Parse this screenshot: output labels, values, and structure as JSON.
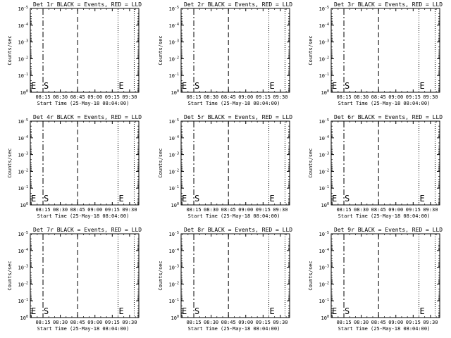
{
  "chart_data": [
    {
      "type": "line",
      "title": "Det 1r BLACK = Events, RED = LLD",
      "xlabel": "Start Time (25-May-18 08:04:00)",
      "ylabel": "Counts/sec",
      "x_ticks": [
        "08:15",
        "08:30",
        "08:45",
        "09:00",
        "09:15",
        "09:30"
      ],
      "y_ticks": [
        "10^0",
        "10^-1",
        "10^-2",
        "10^-3",
        "10^-4",
        "10^-5"
      ],
      "y_scale": "log",
      "series": [],
      "dashdot_lines": [
        "08:04",
        "08:15"
      ],
      "dashed_lines": [
        "08:45"
      ],
      "dotted_lines": [
        "09:20",
        "09:34"
      ],
      "markers": [
        {
          "label": "E",
          "x": "08:04"
        },
        {
          "label": "S",
          "x": "08:15"
        },
        {
          "label": "E",
          "x": "09:20"
        }
      ]
    },
    {
      "type": "line",
      "title": "Det 2r BLACK = Events, RED = LLD",
      "xlabel": "Start Time (25-May-18 08:04:00)",
      "ylabel": "Counts/sec",
      "x_ticks": [
        "08:15",
        "08:30",
        "08:45",
        "09:00",
        "09:15",
        "09:30"
      ],
      "y_ticks": [
        "10^0",
        "10^-1",
        "10^-2",
        "10^-3",
        "10^-4",
        "10^-5"
      ],
      "y_scale": "log",
      "series": [],
      "dashdot_lines": [
        "08:04",
        "08:15"
      ],
      "dashed_lines": [
        "08:45"
      ],
      "dotted_lines": [
        "09:20",
        "09:34"
      ],
      "markers": [
        {
          "label": "E",
          "x": "08:04"
        },
        {
          "label": "S",
          "x": "08:15"
        },
        {
          "label": "E",
          "x": "09:20"
        }
      ]
    },
    {
      "type": "line",
      "title": "Det 3r BLACK = Events, RED = LLD",
      "xlabel": "Start Time (25-May-18 08:04:00)",
      "ylabel": "Counts/sec",
      "x_ticks": [
        "08:15",
        "08:30",
        "08:45",
        "09:00",
        "09:15",
        "09:30"
      ],
      "y_ticks": [
        "10^0",
        "10^-1",
        "10^-2",
        "10^-3",
        "10^-4",
        "10^-5"
      ],
      "y_scale": "log",
      "series": [],
      "dashdot_lines": [
        "08:04",
        "08:15"
      ],
      "dashed_lines": [
        "08:45"
      ],
      "dotted_lines": [
        "09:20",
        "09:34"
      ],
      "markers": [
        {
          "label": "E",
          "x": "08:04"
        },
        {
          "label": "S",
          "x": "08:15"
        },
        {
          "label": "E",
          "x": "09:20"
        }
      ]
    },
    {
      "type": "line",
      "title": "Det 4r BLACK = Events, RED = LLD",
      "xlabel": "Start Time (25-May-18 08:04:00)",
      "ylabel": "Counts/sec",
      "x_ticks": [
        "08:15",
        "08:30",
        "08:45",
        "09:00",
        "09:15",
        "09:30"
      ],
      "y_ticks": [
        "10^0",
        "10^-1",
        "10^-2",
        "10^-3",
        "10^-4",
        "10^-5"
      ],
      "y_scale": "log",
      "series": [],
      "dashdot_lines": [
        "08:04",
        "08:15"
      ],
      "dashed_lines": [
        "08:45"
      ],
      "dotted_lines": [
        "09:20",
        "09:34"
      ],
      "markers": [
        {
          "label": "E",
          "x": "08:04"
        },
        {
          "label": "S",
          "x": "08:15"
        },
        {
          "label": "E",
          "x": "09:20"
        }
      ]
    },
    {
      "type": "line",
      "title": "Det 5r BLACK = Events, RED = LLD",
      "xlabel": "Start Time (25-May-18 08:04:00)",
      "ylabel": "Counts/sec",
      "x_ticks": [
        "08:15",
        "08:30",
        "08:45",
        "09:00",
        "09:15",
        "09:30"
      ],
      "y_ticks": [
        "10^0",
        "10^-1",
        "10^-2",
        "10^-3",
        "10^-4",
        "10^-5"
      ],
      "y_scale": "log",
      "series": [],
      "dashdot_lines": [
        "08:04",
        "08:15"
      ],
      "dashed_lines": [
        "08:45"
      ],
      "dotted_lines": [
        "09:20",
        "09:34"
      ],
      "markers": [
        {
          "label": "E",
          "x": "08:04"
        },
        {
          "label": "S",
          "x": "08:15"
        },
        {
          "label": "E",
          "x": "09:20"
        }
      ]
    },
    {
      "type": "line",
      "title": "Det 6r BLACK = Events, RED = LLD",
      "xlabel": "Start Time (25-May-18 08:04:00)",
      "ylabel": "Counts/sec",
      "x_ticks": [
        "08:15",
        "08:30",
        "08:45",
        "09:00",
        "09:15",
        "09:30"
      ],
      "y_ticks": [
        "10^0",
        "10^-1",
        "10^-2",
        "10^-3",
        "10^-4",
        "10^-5"
      ],
      "y_scale": "log",
      "series": [],
      "dashdot_lines": [
        "08:04",
        "08:15"
      ],
      "dashed_lines": [
        "08:45"
      ],
      "dotted_lines": [
        "09:20",
        "09:34"
      ],
      "markers": [
        {
          "label": "E",
          "x": "08:04"
        },
        {
          "label": "S",
          "x": "08:15"
        },
        {
          "label": "E",
          "x": "09:20"
        }
      ]
    },
    {
      "type": "line",
      "title": "Det 7r BLACK = Events, RED = LLD",
      "xlabel": "Start Time (25-May-18 08:04:00)",
      "ylabel": "Counts/sec",
      "x_ticks": [
        "08:15",
        "08:30",
        "08:45",
        "09:00",
        "09:15",
        "09:30"
      ],
      "y_ticks": [
        "10^0",
        "10^-1",
        "10^-2",
        "10^-3",
        "10^-4",
        "10^-5"
      ],
      "y_scale": "log",
      "series": [],
      "dashdot_lines": [
        "08:04",
        "08:15"
      ],
      "dashed_lines": [
        "08:45"
      ],
      "dotted_lines": [
        "09:20",
        "09:34"
      ],
      "markers": [
        {
          "label": "E",
          "x": "08:04"
        },
        {
          "label": "S",
          "x": "08:15"
        },
        {
          "label": "E",
          "x": "09:20"
        }
      ]
    },
    {
      "type": "line",
      "title": "Det 8r BLACK = Events, RED = LLD",
      "xlabel": "Start Time (25-May-18 08:04:00)",
      "ylabel": "Counts/sec",
      "x_ticks": [
        "08:15",
        "08:30",
        "08:45",
        "09:00",
        "09:15",
        "09:30"
      ],
      "y_ticks": [
        "10^0",
        "10^-1",
        "10^-2",
        "10^-3",
        "10^-4",
        "10^-5"
      ],
      "y_scale": "log",
      "series": [],
      "dashdot_lines": [
        "08:04",
        "08:15"
      ],
      "dashed_lines": [
        "08:45"
      ],
      "dotted_lines": [
        "09:20",
        "09:34"
      ],
      "markers": [
        {
          "label": "E",
          "x": "08:04"
        },
        {
          "label": "S",
          "x": "08:15"
        },
        {
          "label": "E",
          "x": "09:20"
        }
      ]
    },
    {
      "type": "line",
      "title": "Det 9r BLACK = Events, RED = LLD",
      "xlabel": "Start Time (25-May-18 08:04:00)",
      "ylabel": "Counts/sec",
      "x_ticks": [
        "08:15",
        "08:30",
        "08:45",
        "09:00",
        "09:15",
        "09:30"
      ],
      "y_ticks": [
        "10^0",
        "10^-1",
        "10^-2",
        "10^-3",
        "10^-4",
        "10^-5"
      ],
      "y_scale": "log",
      "series": [],
      "dashdot_lines": [
        "08:04",
        "08:15"
      ],
      "dashed_lines": [
        "08:45"
      ],
      "dotted_lines": [
        "09:20",
        "09:34"
      ],
      "markers": [
        {
          "label": "E",
          "x": "08:04"
        },
        {
          "label": "S",
          "x": "08:15"
        },
        {
          "label": "E",
          "x": "09:20"
        }
      ]
    }
  ],
  "colors": {
    "background": "#ffffff",
    "axes": "#000000",
    "events": "#000000",
    "lld": "#ff0000"
  }
}
